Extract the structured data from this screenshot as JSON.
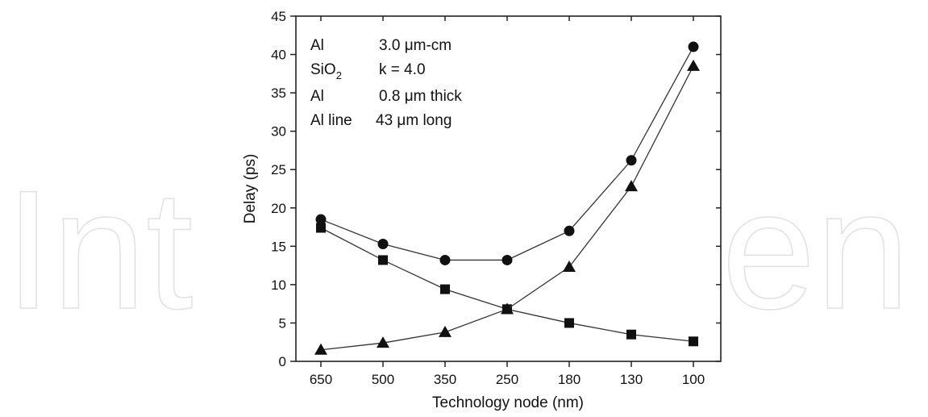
{
  "watermark": {
    "left_text": "Int",
    "right_text": "en",
    "color": "#e3e3e3"
  },
  "chart_data": {
    "type": "line",
    "title": "",
    "xlabel": "Technology node (nm)",
    "ylabel": "Delay (ps)",
    "categories": [
      "650",
      "500",
      "350",
      "250",
      "180",
      "130",
      "100"
    ],
    "ylim": [
      0,
      45
    ],
    "yticks": [
      0,
      5,
      10,
      15,
      20,
      25,
      30,
      35,
      40,
      45
    ],
    "grid": false,
    "legend": "none",
    "series": [
      {
        "marker": "circle",
        "values": [
          18.5,
          15.3,
          13.2,
          13.2,
          17.0,
          26.2,
          41.0
        ]
      },
      {
        "marker": "square",
        "values": [
          17.4,
          13.2,
          9.4,
          6.8,
          5.0,
          3.5,
          2.6
        ]
      },
      {
        "marker": "triangle",
        "values": [
          1.5,
          2.4,
          3.8,
          6.8,
          12.3,
          22.8,
          38.5
        ]
      }
    ],
    "annotation": {
      "rows": [
        {
          "label": "Al",
          "value": "3.0 μm-cm"
        },
        {
          "label": "SiO",
          "sub": "2",
          "value": "k = 4.0"
        },
        {
          "label": "Al",
          "value": "0.8 μm thick"
        },
        {
          "label": "Al line",
          "value": "43 μm long"
        }
      ]
    }
  }
}
